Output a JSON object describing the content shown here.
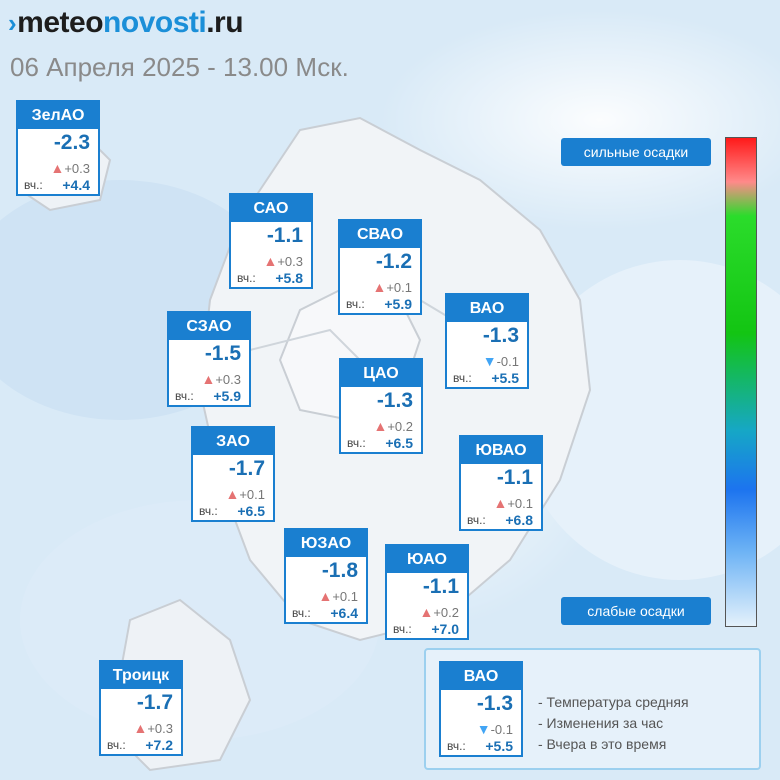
{
  "brand": {
    "part1": "meteo",
    "part2": "novosti",
    "part3": ".ru"
  },
  "datetime": "06 Апреля 2025 - 13.00 Мск.",
  "scale": {
    "top_label": "сильные осадки",
    "bottom_label": "слабые осадки"
  },
  "yesterday_prefix": "вч.:",
  "districts": [
    {
      "name": "ЗелАО",
      "temp": "-2.3",
      "trend": "up",
      "change": "+0.3",
      "yesterday": "+4.4"
    },
    {
      "name": "САО",
      "temp": "-1.1",
      "trend": "up",
      "change": "+0.3",
      "yesterday": "+5.8"
    },
    {
      "name": "СВАО",
      "temp": "-1.2",
      "trend": "up",
      "change": "+0.1",
      "yesterday": "+5.9"
    },
    {
      "name": "ВАО",
      "temp": "-1.3",
      "trend": "down",
      "change": "-0.1",
      "yesterday": "+5.5"
    },
    {
      "name": "СЗАО",
      "temp": "-1.5",
      "trend": "up",
      "change": "+0.3",
      "yesterday": "+5.9"
    },
    {
      "name": "ЦАО",
      "temp": "-1.3",
      "trend": "up",
      "change": "+0.2",
      "yesterday": "+6.5"
    },
    {
      "name": "ЗАО",
      "temp": "-1.7",
      "trend": "up",
      "change": "+0.1",
      "yesterday": "+6.5"
    },
    {
      "name": "ЮВАО",
      "temp": "-1.1",
      "trend": "up",
      "change": "+0.1",
      "yesterday": "+6.8"
    },
    {
      "name": "ЮЗАО",
      "temp": "-1.8",
      "trend": "up",
      "change": "+0.1",
      "yesterday": "+6.4"
    },
    {
      "name": "ЮАО",
      "temp": "-1.1",
      "trend": "up",
      "change": "+0.2",
      "yesterday": "+7.0"
    },
    {
      "name": "Троицк",
      "temp": "-1.7",
      "trend": "up",
      "change": "+0.3",
      "yesterday": "+7.2"
    }
  ],
  "legend": {
    "sample": {
      "name": "ВАО",
      "temp": "-1.3",
      "trend": "down",
      "change": "-0.1",
      "yesterday": "+5.5"
    },
    "line1": "- Температура средняя",
    "line2": "- Изменения за час",
    "line3": "- Вчера в это время"
  },
  "colors": {
    "accent": "#1a7fd0",
    "up_arrow": "#e57373",
    "down_arrow": "#42a5f5"
  }
}
